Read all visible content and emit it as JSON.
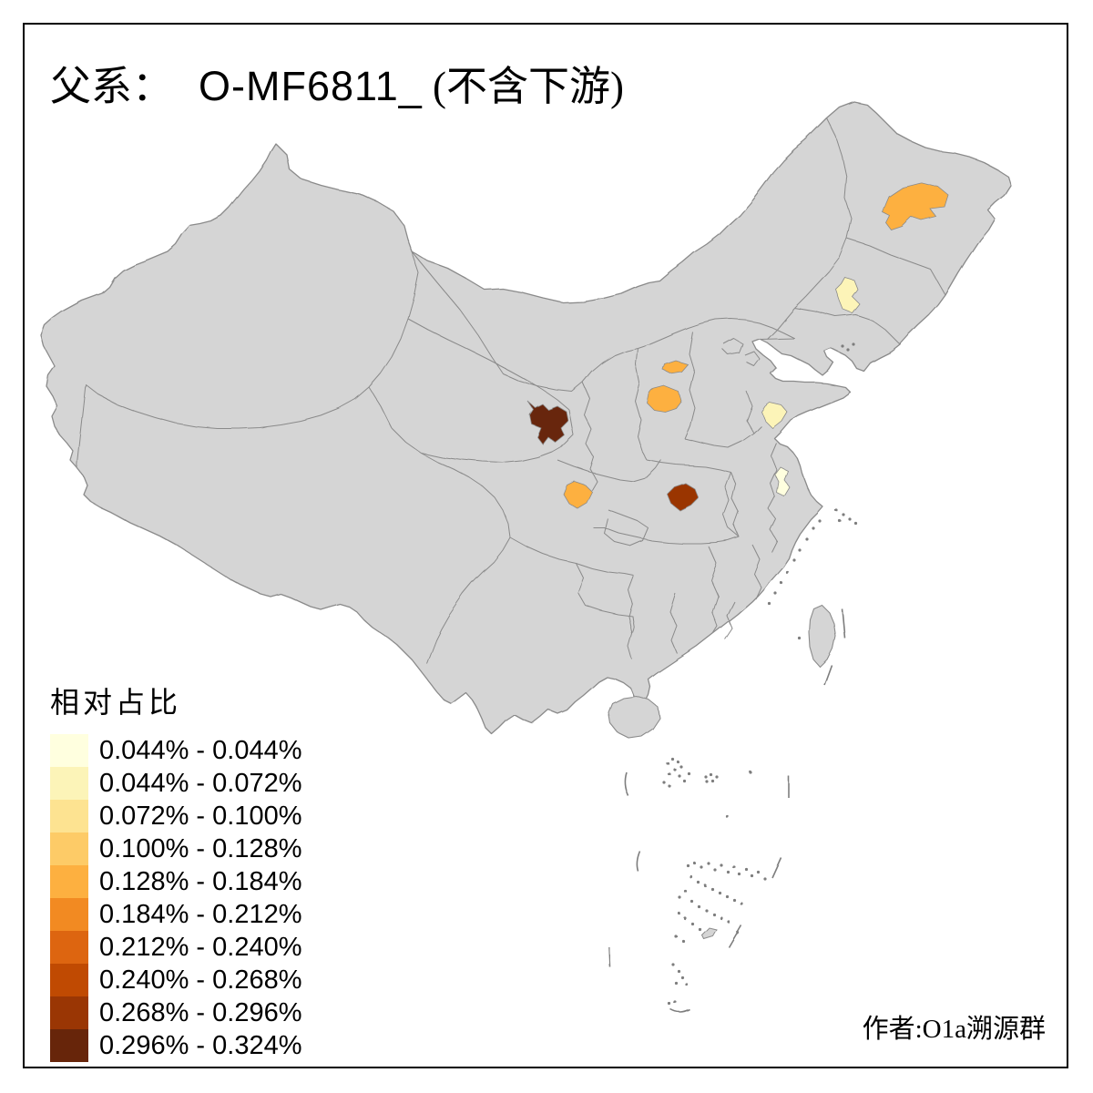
{
  "title": {
    "prefix_zh": "父系：",
    "code": "O-MF6811_",
    "suffix_zh": " (不含下游)",
    "full": "父系： O-MF6811_ (不含下游)"
  },
  "credit": "作者:O1a溯源群",
  "legend": {
    "title": "相对占比",
    "classes": [
      {
        "label": "0.044% - 0.044%",
        "color": "#FFFFDF"
      },
      {
        "label": "0.044% - 0.072%",
        "color": "#FCF4B8"
      },
      {
        "label": "0.072% - 0.100%",
        "color": "#FDE391"
      },
      {
        "label": "0.100% - 0.128%",
        "color": "#FDCB67"
      },
      {
        "label": "0.128% - 0.184%",
        "color": "#FDB040"
      },
      {
        "label": "0.184% - 0.212%",
        "color": "#F28A22"
      },
      {
        "label": "0.212% - 0.240%",
        "color": "#DD6510"
      },
      {
        "label": "0.240% - 0.268%",
        "color": "#C04A02"
      },
      {
        "label": "0.268% - 0.296%",
        "color": "#9A3604"
      },
      {
        "label": "0.296% - 0.324%",
        "color": "#67250A"
      }
    ]
  },
  "map_style": {
    "background": "#FFFFFF",
    "land_fill": "#D5D5D5",
    "boundary_color": "#8A8A8A",
    "frame_color": "#000000"
  },
  "chart_data": {
    "type": "choropleth-map",
    "subject": "China prefecture-level relative frequency of paternal haplogroup O-MF6811_ (downstream excluded)",
    "value_unit": "%",
    "legend_title": "相对占比",
    "class_breaks": [
      0.044,
      0.044,
      0.072,
      0.1,
      0.128,
      0.184,
      0.212,
      0.24,
      0.268,
      0.296,
      0.324
    ],
    "highlighted_regions": [
      {
        "id": "heilongjiang-central",
        "class_index": 4,
        "range": "0.128% - 0.184%",
        "color": "#FDB040"
      },
      {
        "id": "jilin-central",
        "class_index": 1,
        "range": "0.044% - 0.072%",
        "color": "#FCF4B8"
      },
      {
        "id": "shanxi-east",
        "class_index": 4,
        "range": "0.128% - 0.184%",
        "color": "#FDB040"
      },
      {
        "id": "shanxi-southeast",
        "class_index": 4,
        "range": "0.128% - 0.184%",
        "color": "#FDB040"
      },
      {
        "id": "shandong-west",
        "class_index": 1,
        "range": "0.044% - 0.072%",
        "color": "#FCF4B8"
      },
      {
        "id": "gansu-south",
        "class_index": 9,
        "range": "0.296% - 0.324%",
        "color": "#67250A"
      },
      {
        "id": "sichuan-central",
        "class_index": 4,
        "range": "0.128% - 0.184%",
        "color": "#FDB040"
      },
      {
        "id": "hubei-west",
        "class_index": 8,
        "range": "0.268% - 0.296%",
        "color": "#9A3604"
      },
      {
        "id": "anhui-east",
        "class_index": 0,
        "range": "0.044% - 0.044%",
        "color": "#FFFFDF"
      }
    ]
  }
}
